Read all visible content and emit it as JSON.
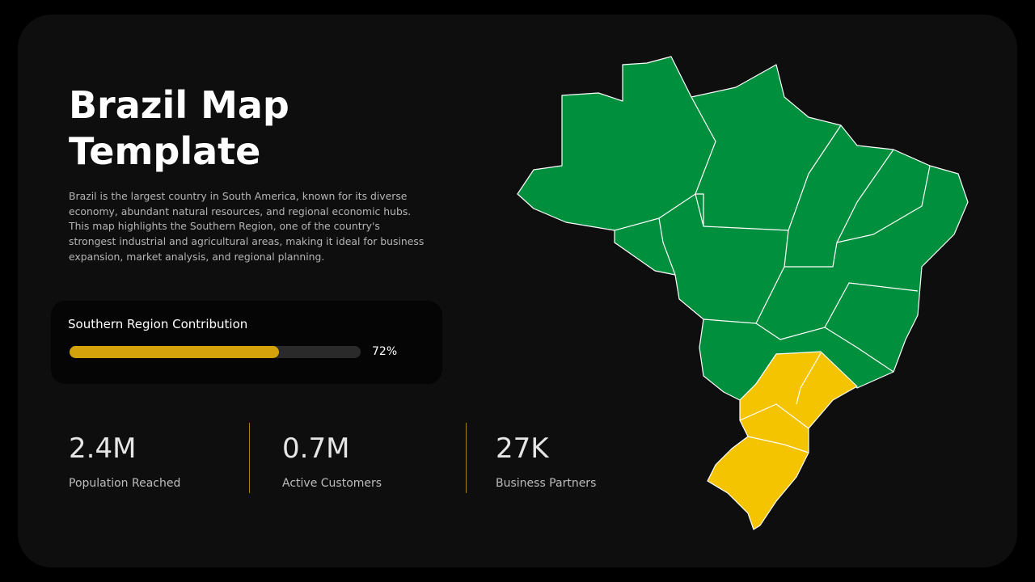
{
  "header": {
    "title": [
      "Brazil Map",
      "Template"
    ],
    "description": "Brazil is the largest country in South America, known for its diverse economy, abundant natural resources, and regional economic hubs. This map highlights the Southern Region, one of the country's strongest industrial and agricultural areas, making it ideal for business expansion, market analysis, and regional planning."
  },
  "contribution": {
    "label": "Southern Region Contribution",
    "value": 72,
    "value_label": "72%",
    "xlim": [
      0,
      100
    ]
  },
  "stats": [
    {
      "value": "2.4M",
      "label": "Population Reached"
    },
    {
      "value": "0.7M",
      "label": "Active Customers"
    },
    {
      "value": "27K",
      "label": "Business Partners"
    }
  ]
}
